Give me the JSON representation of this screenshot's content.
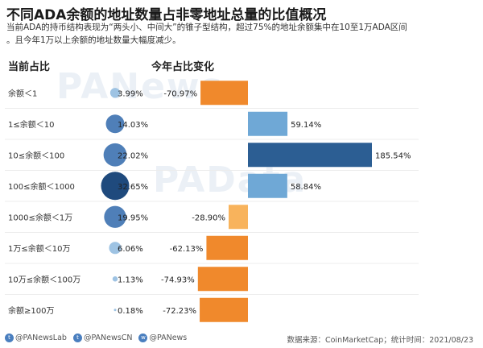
{
  "title": "不同ADA余额的地址数量占非零地址总量的比值概况",
  "subtitle_lines": [
    "当前ADA的持币结构表现为“两头小、中间大”的锥子型结构，超过75%的地址余额集中在10至1万ADA区间",
    "。且今年1万以上余额的地址数量大幅度减少。"
  ],
  "watermarks": [
    "PANews",
    "PAData"
  ],
  "footer": {
    "handles": [
      {
        "icon": "twitter-icon",
        "text": "@PANewsLab"
      },
      {
        "icon": "twitter-icon",
        "text": "@PANewsCN"
      },
      {
        "icon": "weibo-icon",
        "text": "@PANews"
      }
    ],
    "source": "数据来源：CoinMarketCap；统计时间：2021/08/23"
  },
  "colors": {
    "bubble_small": "#9ec3e3",
    "bubble_mid": "#4f7fb8",
    "bubble_large": "#1f4a7d",
    "bar_positive": "#6fa8d6",
    "bar_positive_max": "#2c5e93",
    "bar_negative": "#f0892c",
    "bar_negative_light": "#f8b35c"
  },
  "chart_data": [
    {
      "type": "bubble",
      "title": "当前占比",
      "categories": [
        "余额＜1",
        "1≤余额＜10",
        "10≤余额＜100",
        "100≤余额＜1000",
        "1000≤余额＜1万",
        "1万≤余额＜10万",
        "10万≤余额＜100万",
        "余额≥100万"
      ],
      "values": [
        3.99,
        14.03,
        22.02,
        32.65,
        19.95,
        6.06,
        1.13,
        0.18
      ],
      "labels": [
        "3.99%",
        "14.03%",
        "22.02%",
        "32.65%",
        "19.95%",
        "6.06%",
        "1.13%",
        "0.18%"
      ]
    },
    {
      "type": "bar",
      "orientation": "horizontal",
      "title": "今年占比变化",
      "categories": [
        "余额＜1",
        "1≤余额＜10",
        "10≤余额＜100",
        "100≤余额＜1000",
        "1000≤余额＜1万",
        "1万≤余额＜10万",
        "10万≤余额＜100万",
        "余额≥100万"
      ],
      "values": [
        -70.97,
        59.14,
        185.54,
        58.84,
        -28.9,
        -62.13,
        -74.93,
        -72.23
      ],
      "labels": [
        "-70.97%",
        "59.14%",
        "185.54%",
        "58.84%",
        "-28.90%",
        "-62.13%",
        "-74.93%",
        "-72.23%"
      ]
    }
  ]
}
